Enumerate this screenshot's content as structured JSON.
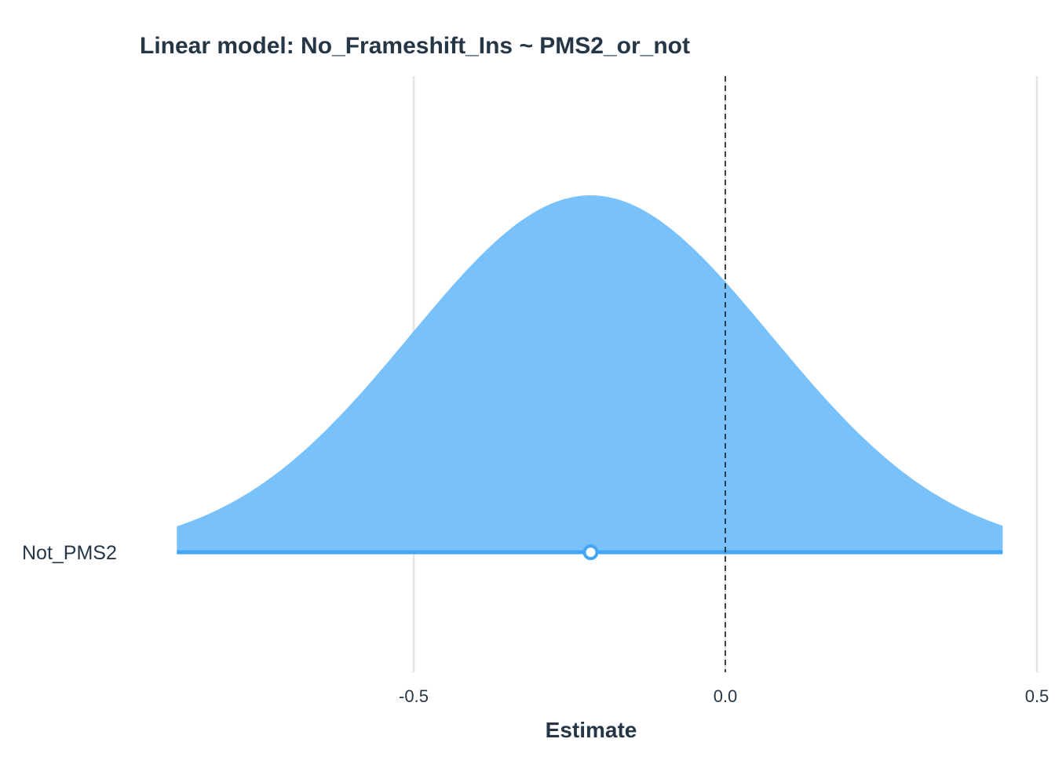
{
  "chart_data": {
    "type": "area",
    "title": "Linear model: No_Frameshift_Ins ~ PMS2_or_not",
    "xlabel": "Estimate",
    "ylabel": "",
    "xlim": [
      -0.87,
      0.5
    ],
    "x_ticks": [
      -0.5,
      0.0,
      0.5
    ],
    "x_tick_labels": [
      "-0.5",
      "0.0",
      "0.5"
    ],
    "grid": true,
    "reference_line": 0.0,
    "terms": [
      {
        "label": "Not_PMS2",
        "estimate": -0.216,
        "std_error": 0.29,
        "interval_range": [
          -0.88,
          0.445
        ]
      }
    ],
    "fill_color": "#79c1fa",
    "line_color": "#42a5f5",
    "text_color": "#253646",
    "grid_color": "#e5e5e5"
  }
}
